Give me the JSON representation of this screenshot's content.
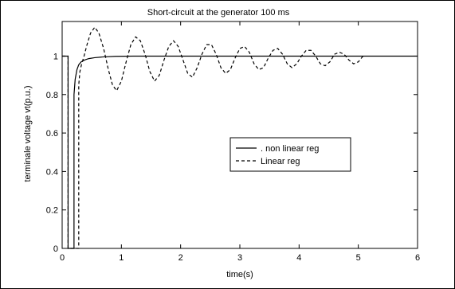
{
  "chart_data": {
    "type": "line",
    "title": "Short-circuit at the generator 100 ms",
    "xlabel": "time(s)",
    "ylabel": "terminale voltage vt(p.u.)",
    "xlim": [
      0,
      6
    ],
    "ylim": [
      0,
      1.18
    ],
    "xticks": [
      0,
      1,
      2,
      3,
      4,
      5,
      6
    ],
    "yticks": [
      0,
      0.2,
      0.4,
      0.6,
      0.8,
      1
    ],
    "xtick_labels": [
      "0",
      "1",
      "2",
      "3",
      "4",
      "5",
      "6"
    ],
    "ytick_labels": [
      "0",
      "0.2",
      "0.4",
      "0.6",
      "0.8",
      "1"
    ],
    "grid": false,
    "legend_position": "center-right",
    "series": [
      {
        "name": ". non linear reg",
        "style": "solid",
        "color": "#000000",
        "x": [
          0,
          0.1,
          0.1,
          0.2,
          0.2,
          0.22,
          0.25,
          0.28,
          0.32,
          0.38,
          0.45,
          0.55,
          0.7,
          0.9,
          1.2,
          6
        ],
        "y": [
          1,
          1,
          0,
          0,
          0.8,
          0.88,
          0.93,
          0.955,
          0.97,
          0.98,
          0.987,
          0.992,
          0.996,
          0.999,
          1.0,
          1.0
        ]
      },
      {
        "name": "Linear reg",
        "style": "dashed",
        "color": "#000000",
        "x": [
          0,
          0.1,
          0.1,
          0.28,
          0.28,
          0.3,
          0.33,
          0.37,
          0.42,
          0.48,
          0.55,
          0.62,
          0.7,
          0.78,
          0.85,
          0.92,
          1.0,
          1.08,
          1.16,
          1.24,
          1.32,
          1.4,
          1.48,
          1.56,
          1.64,
          1.72,
          1.8,
          1.88,
          1.96,
          2.04,
          2.12,
          2.2,
          2.28,
          2.36,
          2.44,
          2.52,
          2.6,
          2.68,
          2.76,
          2.84,
          2.92,
          3.0,
          3.08,
          3.16,
          3.24,
          3.32,
          3.4,
          3.48,
          3.56,
          3.64,
          3.72,
          3.8,
          3.88,
          3.96,
          4.04,
          4.12,
          4.2,
          4.28,
          4.36,
          4.44,
          4.52,
          4.6,
          4.68,
          4.76,
          4.84,
          4.92,
          5.0,
          5.08
        ],
        "y": [
          1,
          1,
          0,
          0,
          0.85,
          0.92,
          0.96,
          1.0,
          1.06,
          1.12,
          1.15,
          1.12,
          1.04,
          0.93,
          0.85,
          0.82,
          0.87,
          0.97,
          1.06,
          1.1,
          1.08,
          1.01,
          0.92,
          0.87,
          0.9,
          0.98,
          1.05,
          1.08,
          1.05,
          0.98,
          0.91,
          0.89,
          0.94,
          1.01,
          1.06,
          1.06,
          1.01,
          0.94,
          0.91,
          0.93,
          0.99,
          1.04,
          1.05,
          1.02,
          0.96,
          0.93,
          0.94,
          0.99,
          1.03,
          1.04,
          1.01,
          0.96,
          0.94,
          0.96,
          1.0,
          1.03,
          1.03,
          1.0,
          0.96,
          0.95,
          0.97,
          1.01,
          1.02,
          1.01,
          0.98,
          0.96,
          0.97,
          1.0
        ]
      }
    ]
  }
}
